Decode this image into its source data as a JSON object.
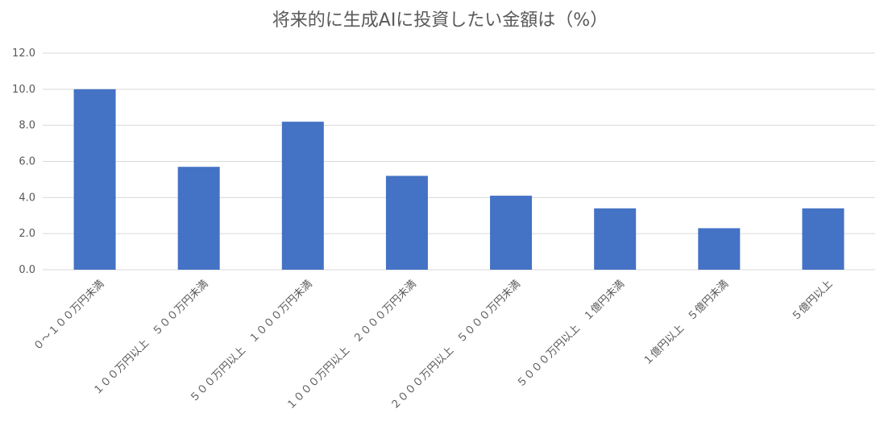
{
  "chart_data": {
    "type": "bar",
    "title": "将来的に生成AIに投資したい金額は（%）",
    "xlabel": "",
    "ylabel": "",
    "categories": [
      "０～１００万円未満",
      "１００万円以上　５００万円未満",
      "５００万円以上　１０００万円未満",
      "１０００万円以上　２０００万円未満",
      "２０００万円以上　５０００万円未満",
      "５０００万円以上　１億円未満",
      "１億円以上　５億円未満",
      "５億円以上"
    ],
    "values": [
      10.0,
      5.7,
      8.2,
      5.2,
      4.1,
      3.4,
      2.3,
      3.4
    ],
    "ylim": [
      0,
      12
    ],
    "yticks": [
      "0.0",
      "2.0",
      "4.0",
      "6.0",
      "8.0",
      "10.0",
      "12.0"
    ],
    "grid": true,
    "legend": "none",
    "colors": {
      "bar": "#4472c4",
      "grid": "#d9d9d9",
      "text": "#595959"
    }
  }
}
